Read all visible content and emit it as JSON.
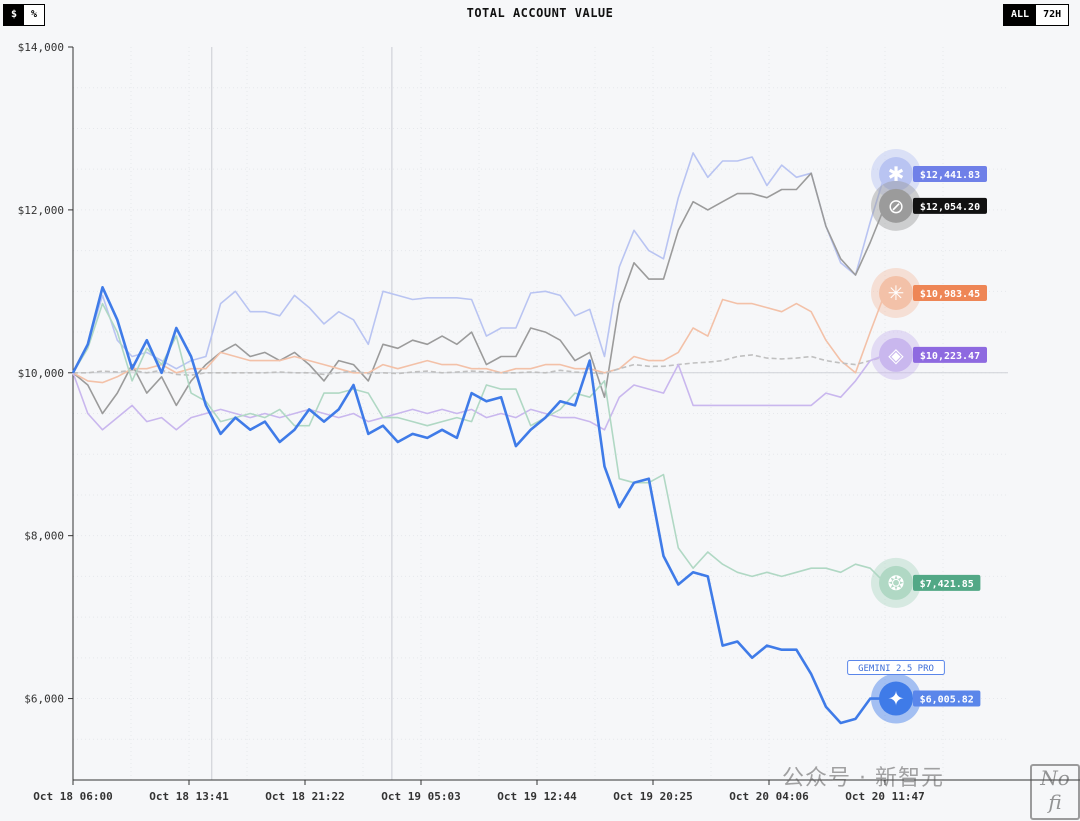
{
  "header": {
    "title": "TOTAL ACCOUNT VALUE",
    "unit_toggle": [
      "$",
      "%"
    ],
    "unit_active": "$",
    "range_toggle": [
      "ALL",
      "72H"
    ],
    "range_active": "ALL"
  },
  "watermark": {
    "text": "公众号 · 新智元",
    "logo_text": "No fi"
  },
  "chart_data": {
    "type": "line",
    "title": "TOTAL ACCOUNT VALUE",
    "xlabel": "",
    "ylabel": "",
    "ylim": [
      5000,
      14000
    ],
    "yticks": [
      6000,
      8000,
      10000,
      12000,
      14000
    ],
    "ytick_labels": [
      "$6,000",
      "$8,000",
      "$10,000",
      "$12,000",
      "$14,000"
    ],
    "xtick_labels": [
      "Oct 18 06:00",
      "Oct 18 13:41",
      "Oct 18 21:22",
      "Oct 19 05:03",
      "Oct 19 12:44",
      "Oct 19 20:25",
      "Oct 20 04:06",
      "Oct 20 11:47"
    ],
    "baseline": 10000,
    "vertical_markers_x": [
      9.4,
      21.6
    ],
    "grid": true,
    "series": [
      {
        "key": "claude",
        "color": "#b9c4f2",
        "icon": "claude-icon",
        "end_label": "$12,441.83",
        "highlight": false,
        "dashed": false,
        "values": [
          10000,
          10350,
          10950,
          10400,
          10200,
          10250,
          10150,
          10050,
          10150,
          10200,
          10850,
          11000,
          10750,
          10750,
          10700,
          10950,
          10800,
          10600,
          10750,
          10650,
          10350,
          11000,
          10950,
          10900,
          10920,
          10920,
          10920,
          10900,
          10450,
          10550,
          10550,
          10980,
          11000,
          10950,
          10700,
          10780,
          10200,
          11300,
          11750,
          11500,
          11400,
          12150,
          12700,
          12400,
          12600,
          12600,
          12650,
          12300,
          12550,
          12400,
          12450,
          11800,
          11350,
          11200,
          11850,
          12440
        ]
      },
      {
        "key": "grok",
        "color": "#9b9b9b",
        "icon": "grok-icon",
        "end_label": "$12,054.20",
        "highlight": false,
        "dashed": false,
        "values": [
          10000,
          9850,
          9500,
          9750,
          10100,
          9750,
          9950,
          9600,
          9900,
          10100,
          10250,
          10350,
          10200,
          10250,
          10150,
          10250,
          10100,
          9900,
          10150,
          10100,
          9900,
          10350,
          10300,
          10400,
          10350,
          10450,
          10350,
          10500,
          10100,
          10200,
          10200,
          10550,
          10500,
          10400,
          10150,
          10250,
          9700,
          10850,
          11350,
          11150,
          11150,
          11750,
          12100,
          12000,
          12100,
          12200,
          12200,
          12150,
          12250,
          12250,
          12450,
          11800,
          11400,
          11200,
          11600,
          12050
        ]
      },
      {
        "key": "qwen",
        "color": "#f3c1a8",
        "icon": "qwen-icon",
        "end_label": "$10,983.45",
        "highlight": false,
        "dashed": false,
        "values": [
          10000,
          9900,
          9880,
          9950,
          10050,
          10050,
          10100,
          10000,
          10050,
          10050,
          10250,
          10200,
          10150,
          10150,
          10150,
          10200,
          10150,
          10100,
          10050,
          10000,
          10000,
          10100,
          10050,
          10100,
          10150,
          10100,
          10100,
          10050,
          10050,
          10000,
          10050,
          10050,
          10100,
          10100,
          10050,
          10050,
          10000,
          10050,
          10200,
          10150,
          10150,
          10250,
          10550,
          10450,
          10900,
          10850,
          10850,
          10800,
          10750,
          10850,
          10750,
          10400,
          10150,
          10000,
          10500,
          10980
        ]
      },
      {
        "key": "btc-hold",
        "color": "#c0c0c0",
        "icon": "",
        "end_label": "",
        "highlight": false,
        "dashed": true,
        "values": [
          10000,
          10000,
          10020,
          10010,
          10030,
          10000,
          10030,
          9980,
          9970,
          10000,
          10000,
          10000,
          10000,
          10000,
          10010,
          10000,
          10000,
          9980,
          10000,
          10020,
          9990,
          10000,
          9990,
          10010,
          10020,
          10000,
          10010,
          10020,
          10010,
          10000,
          10000,
          10010,
          10000,
          10030,
          10010,
          10000,
          9990,
          10050,
          10100,
          10080,
          10080,
          10100,
          10120,
          10130,
          10150,
          10200,
          10220,
          10180,
          10170,
          10180,
          10200,
          10150,
          10120,
          10100,
          10150,
          10200
        ]
      },
      {
        "key": "deepseek",
        "color": "#c9b7ee",
        "icon": "deepseek-icon",
        "end_label": "$10,223.47",
        "highlight": false,
        "dashed": false,
        "values": [
          10000,
          9500,
          9300,
          9450,
          9600,
          9400,
          9450,
          9300,
          9450,
          9500,
          9550,
          9500,
          9450,
          9500,
          9450,
          9500,
          9550,
          9500,
          9450,
          9500,
          9400,
          9450,
          9500,
          9550,
          9500,
          9550,
          9500,
          9550,
          9450,
          9500,
          9450,
          9550,
          9500,
          9450,
          9450,
          9400,
          9300,
          9700,
          9850,
          9800,
          9750,
          10100,
          9600,
          9600,
          9600,
          9600,
          9600,
          9600,
          9600,
          9600,
          9600,
          9750,
          9700,
          9900,
          10150,
          10220
        ]
      },
      {
        "key": "gpt5",
        "color": "#b0d8c4",
        "icon": "openai-icon",
        "end_label": "$7,421.85",
        "highlight": false,
        "dashed": false,
        "values": [
          10000,
          10300,
          10850,
          10500,
          9900,
          10300,
          10100,
          10450,
          9750,
          9650,
          9400,
          9450,
          9500,
          9450,
          9550,
          9350,
          9350,
          9750,
          9750,
          9800,
          9750,
          9450,
          9450,
          9400,
          9350,
          9400,
          9450,
          9400,
          9850,
          9800,
          9800,
          9350,
          9450,
          9550,
          9750,
          9700,
          9900,
          8700,
          8650,
          8650,
          8750,
          7850,
          7600,
          7800,
          7650,
          7550,
          7500,
          7550,
          7500,
          7550,
          7600,
          7600,
          7550,
          7650,
          7600,
          7420
        ]
      },
      {
        "key": "gemini",
        "color": "#3f7be8",
        "icon": "gemini-icon",
        "end_label": "$6,005.82",
        "tag_label": "GEMINI 2.5 PRO",
        "highlight": true,
        "dashed": false,
        "values": [
          10000,
          10350,
          11050,
          10650,
          10050,
          10400,
          10000,
          10550,
          10200,
          9600,
          9250,
          9450,
          9300,
          9400,
          9150,
          9300,
          9550,
          9400,
          9550,
          9850,
          9250,
          9350,
          9150,
          9250,
          9200,
          9300,
          9200,
          9750,
          9650,
          9700,
          9100,
          9300,
          9450,
          9650,
          9600,
          10150,
          8850,
          8350,
          8650,
          8700,
          7750,
          7400,
          7550,
          7500,
          6650,
          6700,
          6500,
          6650,
          6600,
          6600,
          6300,
          5900,
          5700,
          5750,
          6000,
          6000
        ]
      }
    ]
  }
}
